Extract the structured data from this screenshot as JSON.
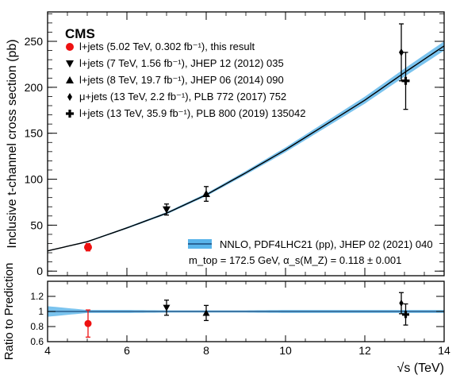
{
  "chart_data": [
    {
      "type": "scatter",
      "title": "",
      "brand": "CMS",
      "xlabel": "√s (TeV)",
      "ylabel": "Inclusive t-channel cross section (pb)",
      "xlim": [
        4,
        14
      ],
      "ylim": [
        -5,
        282
      ],
      "x_ticks": [
        4,
        6,
        8,
        10,
        12,
        14
      ],
      "y_ticks": [
        0,
        50,
        100,
        150,
        200,
        250
      ],
      "grid": false,
      "legend_position": "top-left",
      "series": [
        {
          "name": "l+jets (5.02 TeV, 0.302 fb⁻¹), this result",
          "marker": "circle",
          "color": "#ee1111",
          "points": [
            {
              "x": 5.02,
              "y": 26,
              "err": 4
            }
          ]
        },
        {
          "name": "l+jets (7 TeV, 1.56 fb⁻¹), JHEP 12 (2012) 035",
          "marker": "triangle-down",
          "color": "#000000",
          "points": [
            {
              "x": 7.0,
              "y": 67,
              "err": 6
            }
          ]
        },
        {
          "name": "l+jets (8 TeV, 19.7 fb⁻¹), JHEP 06 (2014) 090",
          "marker": "triangle-up",
          "color": "#000000",
          "points": [
            {
              "x": 8.0,
              "y": 84,
              "err": 8
            }
          ]
        },
        {
          "name": "μ+jets (13 TeV, 2.2 fb⁻¹), PLB 772 (2017) 752",
          "marker": "diamond",
          "color": "#000000",
          "points": [
            {
              "x": 12.92,
              "y": 238,
              "err": 31
            }
          ]
        },
        {
          "name": "l+jets (13 TeV, 35.9 fb⁻¹), PLB 800 (2019) 135042",
          "marker": "cross",
          "color": "#000000",
          "points": [
            {
              "x": 13.03,
              "y": 207,
              "err": 31
            }
          ]
        }
      ],
      "prediction": {
        "name": "NNLO, PDF4LHC21 (pp), JHEP 02 (2021) 040",
        "line_color": "#000000",
        "band_color": "#59b4ea",
        "x": [
          4,
          5,
          6,
          7,
          8,
          9,
          10,
          11,
          12,
          13,
          14
        ],
        "y": [
          22,
          32,
          47,
          63,
          83,
          107,
          132,
          159,
          186,
          216,
          245
        ],
        "band": [
          0.5,
          0.7,
          0.9,
          1.2,
          1.5,
          2.0,
          2.6,
          3.2,
          3.8,
          4.4,
          5.0
        ]
      },
      "params_label": "m_top = 172.5 GeV, α_s(M_Z) = 0.118 ± 0.001"
    },
    {
      "type": "scatter",
      "ylabel": "Ratio to Prediction",
      "xlim": [
        4,
        14
      ],
      "ylim": [
        0.6,
        1.4
      ],
      "y_ticks": [
        0.6,
        0.8,
        1.0,
        1.2
      ],
      "y_tick_labels": [
        "0.6",
        "0.8",
        "1",
        "1.2"
      ],
      "grid": false,
      "reference": 1.0,
      "band_lo": [
        0.93,
        0.98,
        0.98,
        0.985,
        0.985,
        0.985,
        0.98,
        0.98,
        0.98,
        0.98,
        0.98
      ],
      "band_hi": [
        1.07,
        1.02,
        1.02,
        1.015,
        1.015,
        1.015,
        1.02,
        1.02,
        1.02,
        1.02,
        1.02
      ],
      "points": [
        {
          "x": 5.02,
          "y": 0.84,
          "err": 0.18,
          "marker": "circle",
          "color": "#ee1111"
        },
        {
          "x": 7.0,
          "y": 1.05,
          "err": 0.1,
          "marker": "triangle-down",
          "color": "#000000"
        },
        {
          "x": 8.0,
          "y": 0.98,
          "err": 0.1,
          "marker": "triangle-up",
          "color": "#000000"
        },
        {
          "x": 12.92,
          "y": 1.11,
          "err": 0.14,
          "marker": "diamond",
          "color": "#000000"
        },
        {
          "x": 13.03,
          "y": 0.96,
          "err": 0.14,
          "marker": "cross",
          "color": "#000000"
        }
      ]
    }
  ]
}
